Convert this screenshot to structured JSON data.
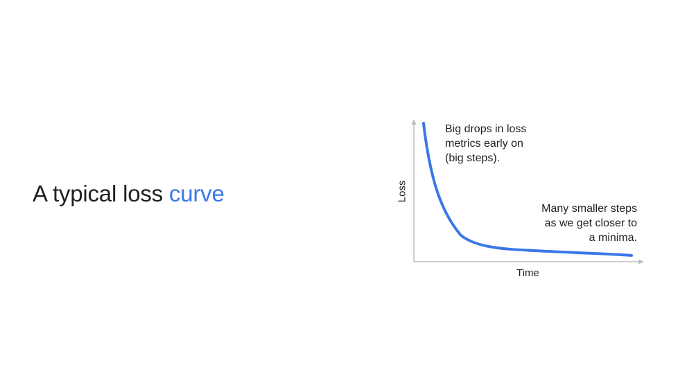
{
  "title": {
    "prefix": "A typical loss ",
    "accent": "curve"
  },
  "diagram": {
    "x_axis_label": "Time",
    "y_axis_label": "Loss",
    "annotation_early": "Big drops in loss\nmetrics early on\n(big steps).",
    "annotation_late": "Many smaller steps\nas we get closer to\na minima.",
    "curve_color": "#3b78e7",
    "axis_color": "#bdbdbd"
  }
}
